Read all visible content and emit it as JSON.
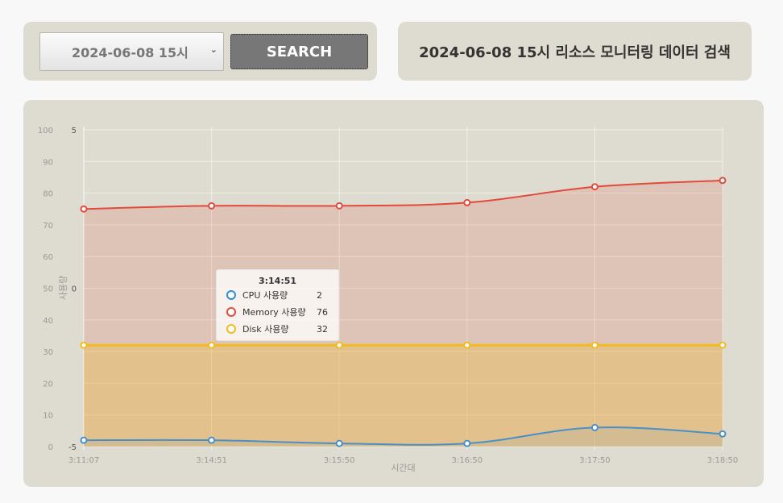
{
  "search": {
    "selected_value": "2024-06-08 15시",
    "button_label": "SEARCH"
  },
  "page_title": "2024-06-08 15시 리소스 모니터링 데이터 검색",
  "chart_data": {
    "type": "area",
    "x": [
      "3:11:07",
      "3:14:51",
      "3:15:50",
      "3:16:50",
      "3:17:50",
      "3:18:50"
    ],
    "xlabel": "시간대",
    "ylabel": "사용량",
    "ylim": [
      0,
      100
    ],
    "y_ticks": [
      0,
      10,
      20,
      30,
      40,
      50,
      60,
      70,
      80,
      90,
      100
    ],
    "secondary_axis": {
      "ticks": [
        "5",
        "0",
        "-5"
      ],
      "range": [
        -5,
        5
      ]
    },
    "grid": true,
    "series": [
      {
        "name": "CPU 사용량",
        "color": "#4a90c8",
        "values": [
          2,
          2,
          1,
          1,
          6,
          4
        ]
      },
      {
        "name": "Memory 사용량",
        "color": "#e24a3b",
        "values": [
          75,
          76,
          76,
          77,
          82,
          84
        ]
      },
      {
        "name": "Disk 사용량",
        "color": "#f2bb1d",
        "values": [
          32,
          32,
          32,
          32,
          32,
          32
        ]
      }
    ],
    "tooltip": {
      "title": "3:14:51",
      "rows": [
        {
          "label": "CPU 사용량",
          "value": "2",
          "color": "#2a8fd8"
        },
        {
          "label": "Memory 사용량",
          "value": "76",
          "color": "#e24a3b"
        },
        {
          "label": "Disk 사용량",
          "value": "32",
          "color": "#f2bb1d"
        }
      ]
    }
  }
}
